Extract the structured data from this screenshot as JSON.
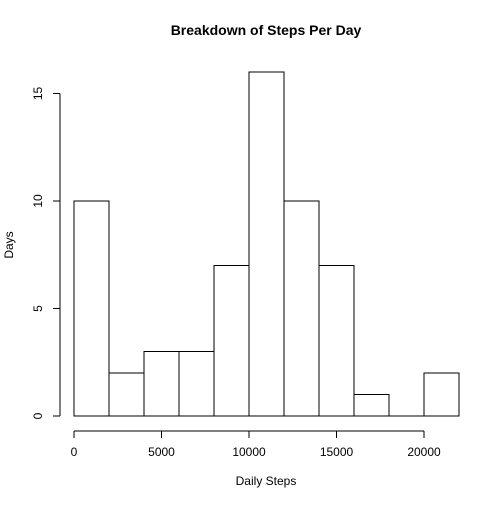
{
  "chart_data": {
    "type": "bar",
    "title": "Breakdown of Steps Per Day",
    "xlabel": "Daily Steps",
    "ylabel": "Days",
    "bins": [
      {
        "from": 0,
        "to": 2000,
        "count": 10
      },
      {
        "from": 2000,
        "to": 4000,
        "count": 2
      },
      {
        "from": 4000,
        "to": 6000,
        "count": 3
      },
      {
        "from": 6000,
        "to": 8000,
        "count": 3
      },
      {
        "from": 8000,
        "to": 10000,
        "count": 7
      },
      {
        "from": 10000,
        "to": 12000,
        "count": 16
      },
      {
        "from": 12000,
        "to": 14000,
        "count": 10
      },
      {
        "from": 14000,
        "to": 16000,
        "count": 7
      },
      {
        "from": 16000,
        "to": 18000,
        "count": 1
      },
      {
        "from": 18000,
        "to": 20000,
        "count": 0
      },
      {
        "from": 20000,
        "to": 22000,
        "count": 2
      }
    ],
    "xlim": [
      0,
      22000
    ],
    "ylim": [
      0,
      16
    ],
    "xticks": [
      {
        "value": 0,
        "label": "0"
      },
      {
        "value": 5000,
        "label": "5000"
      },
      {
        "value": 10000,
        "label": "10000"
      },
      {
        "value": 15000,
        "label": "15000"
      },
      {
        "value": 20000,
        "label": "20000"
      }
    ],
    "yticks": [
      {
        "value": 0,
        "label": "0"
      },
      {
        "value": 5,
        "label": "5"
      },
      {
        "value": 10,
        "label": "10"
      },
      {
        "value": 15,
        "label": "15"
      }
    ],
    "grid": false,
    "legend": "none",
    "bar_fill": "#ffffff",
    "bar_stroke": "#000000"
  }
}
